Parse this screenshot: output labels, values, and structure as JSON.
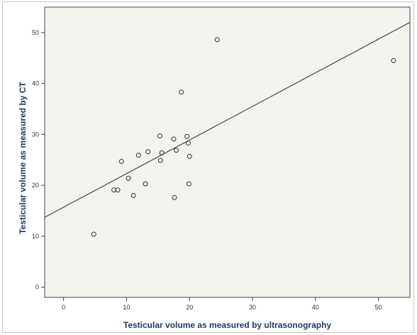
{
  "colors": {
    "plot_bg": "#f2f3ec",
    "marker": "#333333",
    "line": "#2a3a4a",
    "axis_title": "#1f3b63"
  },
  "chart_data": {
    "type": "scatter",
    "xlabel": "Testicular volume as measured by ultrasonography",
    "ylabel": "Testicular volume as measured by CT",
    "xlim": [
      -3,
      55
    ],
    "ylim": [
      -2,
      55
    ],
    "xticks": [
      0,
      10,
      20,
      30,
      40,
      50
    ],
    "yticks": [
      0,
      10,
      20,
      30,
      40,
      50
    ],
    "grid": false,
    "points": [
      {
        "x": 4.8,
        "y": 10.4
      },
      {
        "x": 8.0,
        "y": 19.1
      },
      {
        "x": 8.6,
        "y": 19.1
      },
      {
        "x": 9.2,
        "y": 24.7
      },
      {
        "x": 10.3,
        "y": 21.4
      },
      {
        "x": 11.1,
        "y": 18.0
      },
      {
        "x": 11.9,
        "y": 25.9
      },
      {
        "x": 13.0,
        "y": 20.3
      },
      {
        "x": 13.4,
        "y": 26.6
      },
      {
        "x": 15.3,
        "y": 29.7
      },
      {
        "x": 15.4,
        "y": 24.9
      },
      {
        "x": 15.6,
        "y": 26.4
      },
      {
        "x": 17.5,
        "y": 29.1
      },
      {
        "x": 17.6,
        "y": 17.6
      },
      {
        "x": 17.9,
        "y": 26.9
      },
      {
        "x": 18.7,
        "y": 38.3
      },
      {
        "x": 19.6,
        "y": 29.6
      },
      {
        "x": 19.8,
        "y": 28.3
      },
      {
        "x": 19.9,
        "y": 20.3
      },
      {
        "x": 20.0,
        "y": 25.7
      },
      {
        "x": 24.4,
        "y": 48.6
      },
      {
        "x": 52.4,
        "y": 44.5
      }
    ],
    "fit_line": {
      "intercept": 15.7,
      "slope": 0.66
    }
  }
}
